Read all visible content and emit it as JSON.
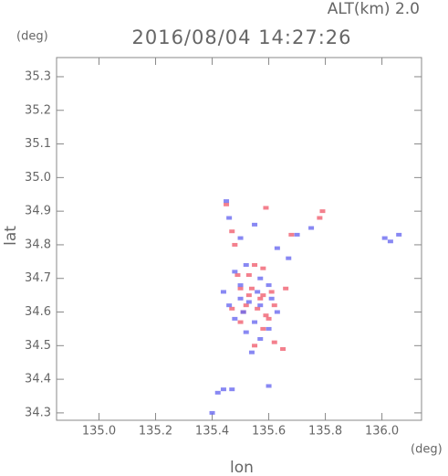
{
  "chart_data": {
    "type": "scatter",
    "title": "2016/08/04 14:27:26",
    "subtitle": "ALT(km) 2.0",
    "y_unit": "(deg)",
    "x_unit": "(deg)",
    "xlabel": "lon",
    "ylabel": "lat",
    "xlim": [
      134.85,
      136.14
    ],
    "ylim": [
      34.278,
      35.357
    ],
    "xticks": [
      {
        "value": 135,
        "label": "135.0"
      },
      135.2,
      135.4,
      135.6,
      135.8,
      {
        "value": 136,
        "label": "136.0"
      }
    ],
    "yticks": [
      34.3,
      34.4,
      34.5,
      34.6,
      34.7,
      34.8,
      34.9,
      {
        "value": 35,
        "label": "35.0"
      },
      35.1,
      35.2,
      35.3
    ],
    "series": [
      {
        "color": "#f06070",
        "x": [
          135.45,
          135.59,
          135.79,
          135.78,
          135.48,
          135.58,
          135.61,
          135.52,
          135.56,
          135.6,
          135.62,
          135.65,
          135.55,
          135.5,
          135.47,
          135.58,
          135.54,
          135.62,
          135.5,
          135.47,
          135.68,
          135.58,
          135.59,
          135.49,
          135.53,
          135.66,
          135.55,
          135.53,
          135.57,
          135.51
        ],
        "values": [
          34.92,
          34.91,
          34.9,
          34.88,
          34.8,
          34.65,
          34.66,
          34.62,
          34.61,
          34.58,
          34.51,
          34.49,
          34.5,
          34.67,
          34.61,
          34.73,
          34.67,
          34.62,
          34.57,
          34.84,
          34.83,
          34.55,
          34.59,
          34.71,
          34.71,
          34.67,
          34.74,
          34.65,
          34.64,
          34.6
        ]
      },
      {
        "color": "#6a6af0",
        "x": [
          135.45,
          135.46,
          135.5,
          135.55,
          135.63,
          135.67,
          135.7,
          135.75,
          136.01,
          136.03,
          136.06,
          135.48,
          135.52,
          135.57,
          135.44,
          135.5,
          135.53,
          135.57,
          135.61,
          135.46,
          135.48,
          135.55,
          135.6,
          135.52,
          135.57,
          135.54,
          135.5,
          135.6,
          135.63,
          135.42,
          135.44,
          135.47,
          135.4,
          135.6,
          135.51,
          135.56
        ],
        "values": [
          34.93,
          34.88,
          34.82,
          34.86,
          34.79,
          34.76,
          34.83,
          34.85,
          34.82,
          34.81,
          34.83,
          34.72,
          34.74,
          34.7,
          34.66,
          34.64,
          34.63,
          34.62,
          34.64,
          34.62,
          34.58,
          34.57,
          34.55,
          34.54,
          34.52,
          34.48,
          34.68,
          34.68,
          34.6,
          34.36,
          34.37,
          34.37,
          34.3,
          34.38,
          34.6,
          34.66
        ]
      }
    ]
  }
}
